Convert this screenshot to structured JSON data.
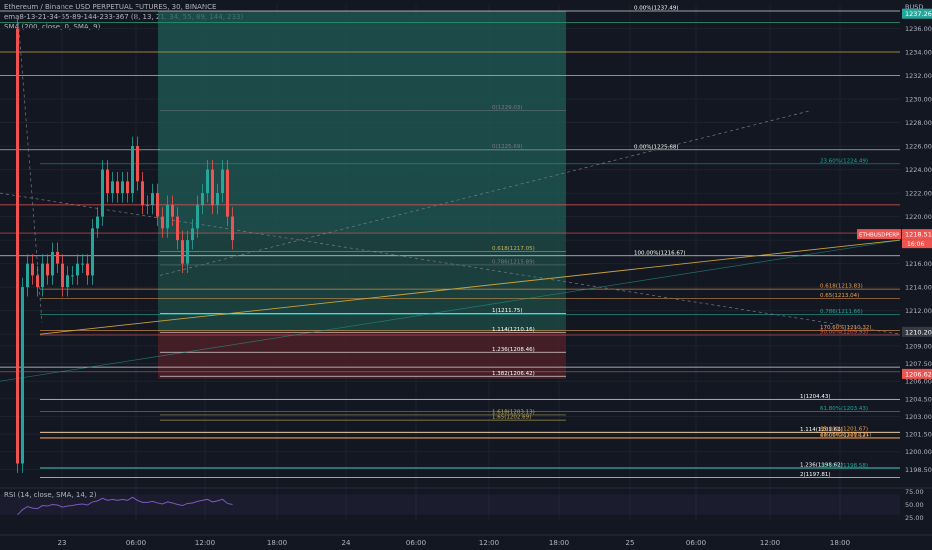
{
  "header": {
    "symbol_line": "Ethereum / Binance USD PERPETUAL FUTURES, 30, BINANCE",
    "ema_line": "ema8-13-21-34-55-89-144-233-367 (8, 13, 21, 34, 55, 89, 144, 233)",
    "sma_line": "SMA (200, close, 0, SMA, 9)"
  },
  "currency": "BUSD",
  "symbol_tag": "ETHBUSDPERP",
  "countdown": "16:06",
  "rsi_label": "RSI (14, close, SMA, 14, 2)",
  "colors": {
    "up": "#26a69a",
    "down": "#ef5350",
    "bg": "#131722",
    "grid": "#1e222d",
    "target_zone": "#1f5c55",
    "stop_zone": "#4a1f28"
  },
  "chart_data": {
    "type": "candlestick",
    "y_axis_ticks": [
      "1236.00",
      "1234.00",
      "1232.00",
      "1230.00",
      "1228.00",
      "1226.00",
      "1224.00",
      "1222.00",
      "1220.00",
      "1218.00",
      "1216.00",
      "1214.00",
      "1212.00",
      "1210.00",
      "1209.00",
      "1207.50",
      "1206.00",
      "1204.50",
      "1203.00",
      "1201.50",
      "1200.00",
      "1198.50"
    ],
    "ylim": [
      1197,
      1238
    ],
    "x_axis_ticks": [
      "23",
      "06:00",
      "12:00",
      "18:00",
      "24",
      "06:00",
      "12:00",
      "18:00",
      "25",
      "06:00",
      "12:00",
      "18:00"
    ],
    "current_price_tags": [
      {
        "price": "1237.26",
        "kind": "green"
      },
      {
        "price": "1218.51",
        "kind": "red"
      },
      {
        "price": "1210.20",
        "kind": "dark"
      },
      {
        "price": "1206.62",
        "kind": "red"
      }
    ],
    "candles_close": [
      1199,
      1214,
      1216,
      1215,
      1214,
      1216,
      1215,
      1217,
      1216,
      1214,
      1215,
      1215,
      1216,
      1216,
      1215,
      1219,
      1220,
      1224,
      1222,
      1223,
      1222,
      1223,
      1222,
      1226,
      1223,
      1221,
      1221,
      1222,
      1220,
      1219,
      1221,
      1220,
      1218,
      1216,
      1218,
      1219,
      1221,
      1222,
      1224,
      1221,
      1222,
      1224,
      1220,
      1218
    ],
    "fib_levels": [
      {
        "label": "0.00%(1237.49)",
        "price": 1237.49,
        "color": "#ffffff"
      },
      {
        "label": "0(1229.03)",
        "price": 1229.03,
        "color": "#787b86"
      },
      {
        "label": "0.00%(1225.68)",
        "price": 1225.68,
        "color": "#ffffff"
      },
      {
        "label": "0(1225.69)",
        "price": 1225.69,
        "color": "#787b86"
      },
      {
        "label": "23.60%(1224.49)",
        "price": 1224.49,
        "color": "#26a69a"
      },
      {
        "label": "0.618(1217.05)",
        "price": 1217.05,
        "color": "#c9b458"
      },
      {
        "label": "100.00%(1216.67)",
        "price": 1216.67,
        "color": "#ffffff"
      },
      {
        "label": "0.786(1215.89)",
        "price": 1215.89,
        "color": "#787b86"
      },
      {
        "label": "0.618(1213.83)",
        "price": 1213.83,
        "color": "#f0a24b"
      },
      {
        "label": "0.65(1213.04)",
        "price": 1213.04,
        "color": "#f0a24b"
      },
      {
        "label": "1(1211.75)",
        "price": 1211.75,
        "color": "#ffffff"
      },
      {
        "label": "0.786(1211.66)",
        "price": 1211.66,
        "color": "#26a69a"
      },
      {
        "label": "170.60%(1210.32)",
        "price": 1210.32,
        "color": "#f0a24b"
      },
      {
        "label": "1.114(1210.16)",
        "price": 1210.16,
        "color": "#ffffff"
      },
      {
        "label": "50.00%(1209.93)",
        "price": 1209.93,
        "color": "#ef5350"
      },
      {
        "label": "1.236(1208.46)",
        "price": 1208.46,
        "color": "#ffffff"
      },
      {
        "label": "1.382(1206.42)",
        "price": 1206.42,
        "color": "#ffffff"
      },
      {
        "label": "1(1204.43)",
        "price": 1204.43,
        "color": "#ffffff"
      },
      {
        "label": "61.80%(1203.43)",
        "price": 1203.43,
        "color": "#26a69a"
      },
      {
        "label": "1.618(1203.13)",
        "price": 1203.13,
        "color": "#c9b458"
      },
      {
        "label": "1.65(1202.69)",
        "price": 1202.69,
        "color": "#c9b458"
      },
      {
        "label": "1.114(1201.62)",
        "price": 1201.62,
        "color": "#ffffff"
      },
      {
        "label": "65.00%(1201.67)",
        "price": 1201.67,
        "color": "#f0a24b"
      },
      {
        "label": "230.60%(1201.21)",
        "price": 1201.21,
        "color": "#f0a24b"
      },
      {
        "label": "66.00%(1201.12)",
        "price": 1201.12,
        "color": "#f0a24b"
      },
      {
        "label": "1.236(1198.62)",
        "price": 1198.62,
        "color": "#ffffff"
      },
      {
        "label": "70.60%(1198.58)",
        "price": 1198.58,
        "color": "#26a69a"
      },
      {
        "label": "2(1197.81)",
        "price": 1197.81,
        "color": "#ffffff"
      }
    ],
    "rsi": {
      "ylim": [
        20,
        80
      ],
      "ticks": [
        "75.00",
        "50.00",
        "25.00"
      ],
      "values": [
        30,
        40,
        46,
        43,
        42,
        48,
        47,
        50,
        49,
        45,
        47,
        48,
        50,
        51,
        49,
        55,
        57,
        62,
        58,
        60,
        58,
        60,
        58,
        64,
        58,
        54,
        54,
        56,
        53,
        51,
        55,
        53,
        50,
        48,
        52,
        53,
        56,
        58,
        60,
        55,
        57,
        60,
        52,
        50
      ]
    }
  }
}
